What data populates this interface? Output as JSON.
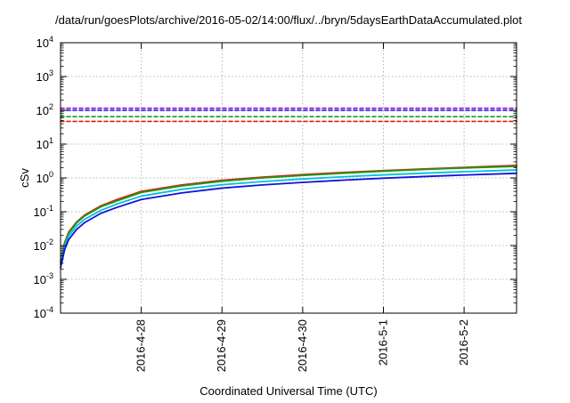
{
  "chart_data": {
    "type": "line",
    "title": "/data/run/goesPlots/archive/2016-05-02/14:00/flux/../bryn/5daysEarthDataAccumulated.plot",
    "xlabel": "Coordinated Universal Time (UTC)",
    "ylabel": "cSv",
    "y_scale": "log",
    "ylim": [
      0.0001,
      10000
    ],
    "y_ticks": [
      {
        "value": 0.0001,
        "base": "10",
        "exp": "-4"
      },
      {
        "value": 0.001,
        "base": "10",
        "exp": "-3"
      },
      {
        "value": 0.01,
        "base": "10",
        "exp": "-2"
      },
      {
        "value": 0.1,
        "base": "10",
        "exp": "-1"
      },
      {
        "value": 1,
        "base": "10",
        "exp": "0"
      },
      {
        "value": 10,
        "base": "10",
        "exp": "1"
      },
      {
        "value": 100,
        "base": "10",
        "exp": "2"
      },
      {
        "value": 1000,
        "base": "10",
        "exp": "3"
      },
      {
        "value": 10000,
        "base": "10",
        "exp": "4"
      }
    ],
    "x_range_days": [
      0,
      5.65
    ],
    "x_ticks": [
      {
        "label": "2016-4-28",
        "value": 1.0
      },
      {
        "label": "2016-4-29",
        "value": 2.0
      },
      {
        "label": "2016-4-30",
        "value": 3.0
      },
      {
        "label": "2016-5-1",
        "value": 4.0
      },
      {
        "label": "2016-5-2",
        "value": 5.0
      }
    ],
    "grid": true,
    "legend": "none",
    "series": [
      {
        "color": "#e41a1c",
        "style": "solid",
        "x": [
          0,
          0.05,
          0.1,
          0.2,
          0.3,
          0.5,
          0.7,
          1.0,
          1.5,
          2.0,
          2.5,
          3.0,
          3.5,
          4.0,
          4.5,
          5.0,
          5.65
        ],
        "y": [
          0.0035,
          0.012,
          0.025,
          0.05,
          0.08,
          0.15,
          0.23,
          0.4,
          0.62,
          0.85,
          1.05,
          1.25,
          1.45,
          1.65,
          1.85,
          2.05,
          2.35
        ]
      },
      {
        "color": "#10a010",
        "style": "solid",
        "x": [
          0,
          0.05,
          0.1,
          0.2,
          0.3,
          0.5,
          0.7,
          1.0,
          1.5,
          2.0,
          2.5,
          3.0,
          3.5,
          4.0,
          4.5,
          5.0,
          5.65
        ],
        "y": [
          0.0032,
          0.011,
          0.023,
          0.047,
          0.075,
          0.14,
          0.21,
          0.37,
          0.58,
          0.8,
          1.0,
          1.18,
          1.38,
          1.58,
          1.78,
          1.97,
          2.2
        ]
      },
      {
        "color": "#00c0e0",
        "style": "solid",
        "x": [
          0,
          0.05,
          0.1,
          0.2,
          0.3,
          0.5,
          0.7,
          1.0,
          1.5,
          2.0,
          2.5,
          3.0,
          3.5,
          4.0,
          4.5,
          5.0,
          5.65
        ],
        "y": [
          0.0028,
          0.0095,
          0.019,
          0.038,
          0.06,
          0.11,
          0.17,
          0.29,
          0.46,
          0.63,
          0.78,
          0.93,
          1.08,
          1.23,
          1.38,
          1.53,
          1.72
        ]
      },
      {
        "color": "#1010e0",
        "style": "solid",
        "x": [
          0,
          0.05,
          0.1,
          0.2,
          0.3,
          0.5,
          0.7,
          1.0,
          1.5,
          2.0,
          2.5,
          3.0,
          3.5,
          4.0,
          4.5,
          5.0,
          5.65
        ],
        "y": [
          0.0022,
          0.0075,
          0.015,
          0.03,
          0.048,
          0.09,
          0.135,
          0.23,
          0.36,
          0.5,
          0.62,
          0.74,
          0.86,
          0.98,
          1.1,
          1.22,
          1.37
        ]
      },
      {
        "color": "#9400d3",
        "style": "dashed",
        "x": [
          0,
          5.65
        ],
        "y": [
          115,
          115
        ]
      },
      {
        "color": "#1010e0",
        "style": "dashed",
        "x": [
          0,
          5.65
        ],
        "y": [
          100,
          100
        ]
      },
      {
        "color": "#10a010",
        "style": "dashed",
        "x": [
          0,
          5.65
        ],
        "y": [
          65,
          65
        ]
      },
      {
        "color": "#e41a1c",
        "style": "dashed",
        "x": [
          0,
          5.65
        ],
        "y": [
          47,
          47
        ]
      }
    ]
  }
}
